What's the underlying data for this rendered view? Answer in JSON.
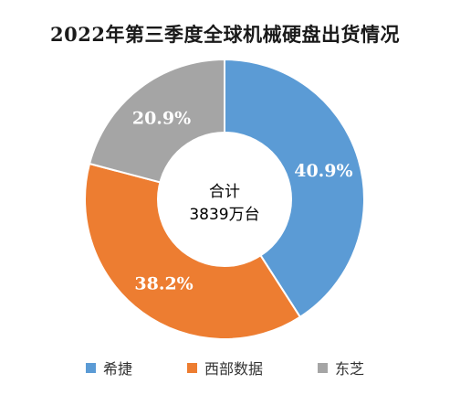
{
  "chart_data": {
    "type": "pie",
    "variant": "donut",
    "title": "2022年第三季度全球机械硬盘出货情况",
    "center_label": [
      "合计",
      "3839万台"
    ],
    "categories": [
      "希捷",
      "西部数据",
      "东芝"
    ],
    "values": [
      40.9,
      38.2,
      20.9
    ],
    "value_labels": [
      "40.9%",
      "38.2%",
      "20.9%"
    ],
    "colors": [
      "#5b9bd5",
      "#ed7d31",
      "#a5a5a5"
    ],
    "legend_position": "bottom"
  }
}
